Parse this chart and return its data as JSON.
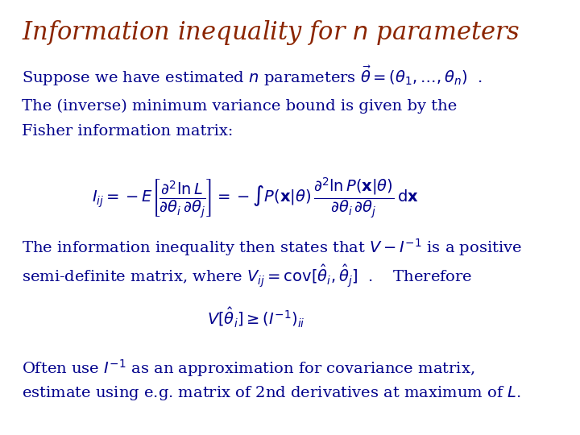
{
  "title": "Information inequality for $n$ parameters",
  "title_color": "#8B2500",
  "title_fontsize": 22,
  "body_color": "#00008B",
  "body_fontsize": 14,
  "math_fontsize": 13,
  "background_color": "#FFFFFF",
  "line1": "Suppose we have estimated $n$ parameters $\\vec{\\theta} = (\\theta_1, \\ldots, \\theta_n)$  .",
  "line2": "The (inverse) minimum variance bound is given by the",
  "line3": "Fisher information matrix:",
  "formula1": "$I_{ij} = -E\\left[\\dfrac{\\partial^2 \\ln L}{\\partial\\theta_i\\, \\partial\\theta_j}\\right] = -\\int P(\\mathbf{x}|\\theta)\\, \\dfrac{\\partial^2 \\ln P(\\mathbf{x}|\\theta)}{\\partial\\theta_i\\, \\partial\\theta_j}\\, \\mathrm{d}\\mathbf{x}$",
  "line4": "The information inequality then states that $V - I^{-1}$ is a positive",
  "line5": "semi-definite matrix, where $V_{ij} = \\mathrm{cov}[\\hat{\\theta}_i, \\hat{\\theta}_j]$  .    Therefore",
  "formula2": "$V[\\hat{\\theta}_i] \\geq (I^{-1})_{ii}$",
  "line6": "Often use $I^{-1}$ as an approximation for covariance matrix,",
  "line7": "estimate using e.g. matrix of 2nd derivatives at maximum of $L$."
}
